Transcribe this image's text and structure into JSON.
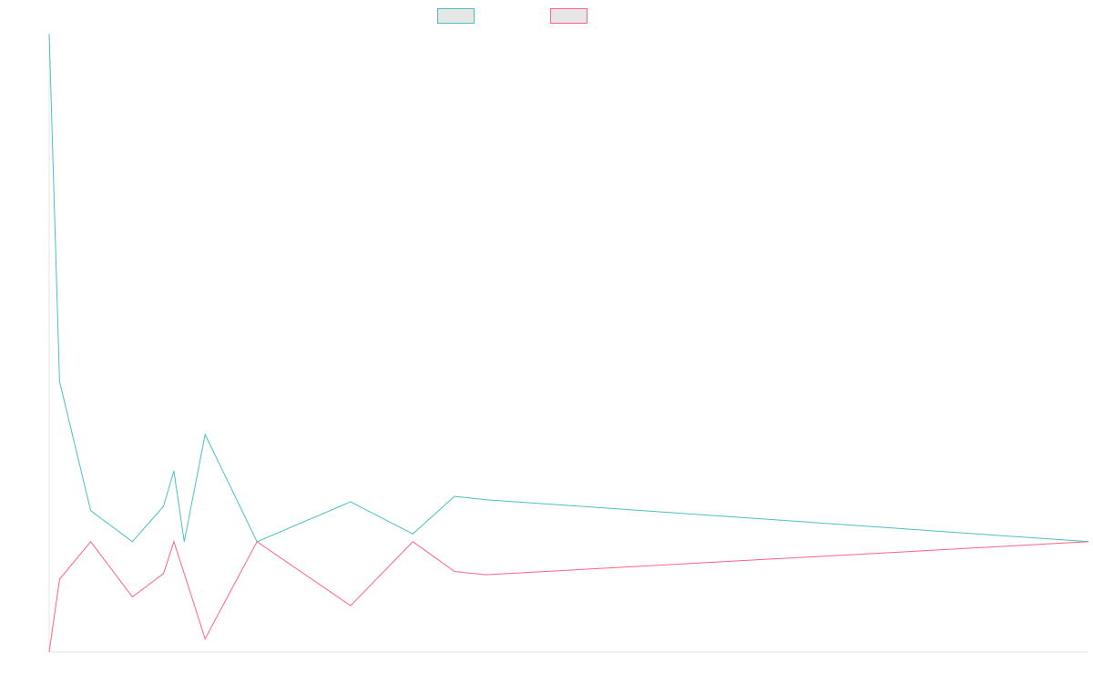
{
  "chart_data": {
    "type": "line",
    "title": "",
    "xlabel": "",
    "ylabel": "",
    "grid": false,
    "legend_position": "top-center",
    "x": [
      0,
      1,
      4,
      8,
      11,
      12,
      13,
      15,
      20,
      29,
      35,
      39,
      42,
      100
    ],
    "xlim": [
      0,
      100
    ],
    "ylim": [
      -100,
      460
    ],
    "series": [
      {
        "color": "#4bc0c0",
        "values": [
          460,
          145,
          28,
          0,
          32,
          64,
          0,
          97,
          0,
          36,
          7,
          41,
          38,
          0
        ]
      },
      {
        "color": "#ff6384",
        "values": [
          -100,
          -34,
          0,
          -50,
          -29,
          0,
          -29,
          -88,
          0,
          -58,
          0,
          -27,
          -30,
          0
        ]
      }
    ]
  }
}
